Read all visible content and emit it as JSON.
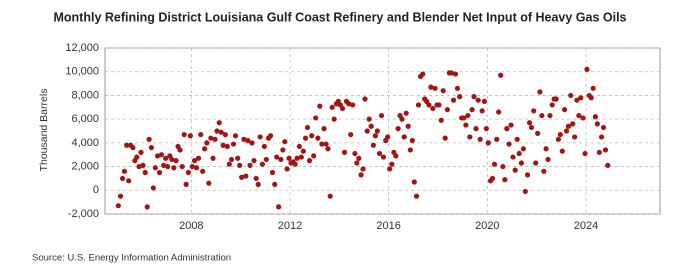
{
  "chart_data": {
    "type": "scatter",
    "title": "Monthly Refining District Louisiana Gulf Coast Refinery and Blender Net Input of Heavy Gas Oils",
    "y_label": "Thousand Barrels",
    "source": "Source: U.S. Energy Information Administration",
    "xlim": [
      2004.5,
      2027
    ],
    "xticks": [
      2008,
      2012,
      2016,
      2020,
      2024
    ],
    "ylim": [
      -2000,
      12000
    ],
    "yticks": [
      {
        "value": -2000,
        "label": "-2,000"
      },
      0,
      {
        "value": 2000,
        "label": "2,000"
      },
      {
        "value": 4000,
        "label": "4,000"
      },
      {
        "value": 6000,
        "label": "6,000"
      },
      {
        "value": 8000,
        "label": "8,000"
      },
      {
        "value": 10000,
        "label": "10,000"
      },
      {
        "value": 12000,
        "label": "12,000"
      }
    ],
    "grid": true,
    "color": "#a31515",
    "x": [
      2005.04,
      2005.13,
      2005.21,
      2005.29,
      2005.38,
      2005.46,
      2005.54,
      2005.63,
      2005.71,
      2005.79,
      2005.88,
      2005.96,
      2006.04,
      2006.13,
      2006.21,
      2006.29,
      2006.38,
      2006.46,
      2006.54,
      2006.63,
      2006.71,
      2006.79,
      2006.88,
      2006.96,
      2007.04,
      2007.13,
      2007.21,
      2007.29,
      2007.38,
      2007.46,
      2007.54,
      2007.63,
      2007.71,
      2007.79,
      2007.88,
      2007.96,
      2008.04,
      2008.13,
      2008.21,
      2008.29,
      2008.38,
      2008.46,
      2008.54,
      2008.63,
      2008.71,
      2008.79,
      2008.88,
      2008.96,
      2009.04,
      2009.13,
      2009.21,
      2009.29,
      2009.38,
      2009.46,
      2009.54,
      2009.63,
      2009.71,
      2009.79,
      2009.88,
      2009.96,
      2010.04,
      2010.13,
      2010.21,
      2010.29,
      2010.38,
      2010.46,
      2010.54,
      2010.63,
      2010.71,
      2010.79,
      2010.88,
      2010.96,
      2011.04,
      2011.13,
      2011.21,
      2011.29,
      2011.38,
      2011.46,
      2011.54,
      2011.63,
      2011.71,
      2011.79,
      2011.88,
      2011.96,
      2012.04,
      2012.13,
      2012.21,
      2012.29,
      2012.38,
      2012.46,
      2012.54,
      2012.63,
      2012.71,
      2012.79,
      2012.88,
      2012.96,
      2013.04,
      2013.13,
      2013.21,
      2013.29,
      2013.38,
      2013.46,
      2013.54,
      2013.63,
      2013.71,
      2013.79,
      2013.88,
      2013.96,
      2014.04,
      2014.13,
      2014.21,
      2014.29,
      2014.38,
      2014.46,
      2014.54,
      2014.63,
      2014.71,
      2014.79,
      2014.88,
      2014.96,
      2015.04,
      2015.13,
      2015.21,
      2015.29,
      2015.38,
      2015.46,
      2015.54,
      2015.63,
      2015.71,
      2015.79,
      2015.88,
      2015.96,
      2016.04,
      2016.13,
      2016.21,
      2016.29,
      2016.38,
      2016.46,
      2016.54,
      2016.63,
      2016.71,
      2016.79,
      2016.88,
      2016.96,
      2017.04,
      2017.13,
      2017.21,
      2017.29,
      2017.38,
      2017.46,
      2017.54,
      2017.63,
      2017.71,
      2017.79,
      2017.88,
      2017.96,
      2018.04,
      2018.13,
      2018.21,
      2018.29,
      2018.38,
      2018.46,
      2018.54,
      2018.63,
      2018.71,
      2018.79,
      2018.88,
      2018.96,
      2019.04,
      2019.13,
      2019.21,
      2019.29,
      2019.38,
      2019.46,
      2019.54,
      2019.63,
      2019.71,
      2019.79,
      2019.88,
      2019.96,
      2020.04,
      2020.13,
      2020.21,
      2020.29,
      2020.38,
      2020.46,
      2020.54,
      2020.63,
      2020.71,
      2020.79,
      2020.88,
      2020.96,
      2021.04,
      2021.13,
      2021.21,
      2021.29,
      2021.38,
      2021.46,
      2021.54,
      2021.63,
      2021.71,
      2021.79,
      2021.88,
      2021.96,
      2022.04,
      2022.13,
      2022.21,
      2022.29,
      2022.38,
      2022.46,
      2022.54,
      2022.63,
      2022.71,
      2022.79,
      2022.88,
      2022.96,
      2023.04,
      2023.13,
      2023.21,
      2023.29,
      2023.38,
      2023.46,
      2023.54,
      2023.63,
      2023.71,
      2023.79,
      2023.88,
      2023.96,
      2024.04,
      2024.13,
      2024.21,
      2024.29,
      2024.38,
      2024.46,
      2024.54,
      2024.63,
      2024.71,
      2024.79,
      2024.88
    ],
    "values": [
      -1300,
      -500,
      1000,
      1600,
      3800,
      800,
      3800,
      3600,
      2500,
      2800,
      2000,
      3200,
      2100,
      1500,
      -1400,
      4300,
      3600,
      200,
      1900,
      2900,
      1500,
      3000,
      2100,
      2700,
      2000,
      2900,
      2600,
      1900,
      2500,
      3700,
      3400,
      2000,
      4700,
      500,
      1500,
      4600,
      2000,
      2500,
      1900,
      2700,
      4700,
      1600,
      3500,
      4000,
      600,
      4400,
      2700,
      4300,
      5000,
      5700,
      4900,
      3800,
      4700,
      3700,
      2200,
      2600,
      3900,
      4600,
      2700,
      2100,
      1100,
      4300,
      1200,
      4200,
      2100,
      4000,
      2500,
      1000,
      500,
      4500,
      2200,
      3700,
      2600,
      4400,
      4600,
      1500,
      500,
      2800,
      -1400,
      2600,
      3400,
      4100,
      1800,
      2700,
      2300,
      2400,
      2200,
      2700,
      3700,
      2800,
      3300,
      4400,
      5300,
      2500,
      4600,
      2900,
      6100,
      4400,
      7100,
      3900,
      5200,
      3900,
      3500,
      -500,
      7000,
      6000,
      7300,
      7500,
      7200,
      6900,
      3200,
      7500,
      7300,
      4700,
      7200,
      3100,
      2300,
      2700,
      1300,
      1800,
      7700,
      5000,
      6000,
      5400,
      3800,
      4600,
      5000,
      3100,
      6300,
      2800,
      4200,
      4500,
      1800,
      2200,
      3200,
      2900,
      5200,
      6300,
      6000,
      4500,
      6500,
      5400,
      3400,
      4200,
      700,
      -500,
      7200,
      9600,
      9800,
      7700,
      7500,
      7200,
      8700,
      6900,
      8600,
      7200,
      7200,
      5900,
      8400,
      4400,
      6800,
      9900,
      9900,
      7600,
      9800,
      8600,
      7900,
      6100,
      6100,
      5500,
      6300,
      4500,
      6800,
      7900,
      5200,
      7600,
      4300,
      6700,
      7500,
      5200,
      4000,
      800,
      1000,
      2200,
      4300,
      6600,
      9700,
      2000,
      900,
      5200,
      3900,
      5500,
      2800,
      1700,
      4300,
      3100,
      2300,
      3500,
      -100,
      1300,
      5700,
      5300,
      6700,
      2300,
      4800,
      8300,
      6300,
      1600,
      3500,
      2600,
      6300,
      7200,
      7700,
      7700,
      4300,
      4700,
      3300,
      6800,
      5000,
      5400,
      8000,
      5600,
      4500,
      7600,
      6300,
      7800,
      6100,
      3100,
      10200,
      8000,
      7800,
      8600,
      6200,
      5600,
      3200,
      4500,
      5300,
      3400,
      2100
    ]
  }
}
